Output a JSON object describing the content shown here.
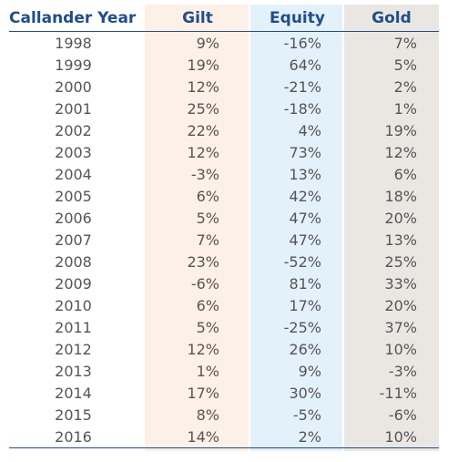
{
  "table": {
    "headers": [
      "Callander Year",
      "Gilt",
      "Equity",
      "Gold"
    ],
    "rows": [
      {
        "year": "1998",
        "gilt": "9%",
        "equity": "-16%",
        "gold": "7%"
      },
      {
        "year": "1999",
        "gilt": "19%",
        "equity": "64%",
        "gold": "5%"
      },
      {
        "year": "2000",
        "gilt": "12%",
        "equity": "-21%",
        "gold": "2%"
      },
      {
        "year": "2001",
        "gilt": "25%",
        "equity": "-18%",
        "gold": "1%"
      },
      {
        "year": "2002",
        "gilt": "22%",
        "equity": "4%",
        "gold": "19%"
      },
      {
        "year": "2003",
        "gilt": "12%",
        "equity": "73%",
        "gold": "12%"
      },
      {
        "year": "2004",
        "gilt": "-3%",
        "equity": "13%",
        "gold": "6%"
      },
      {
        "year": "2005",
        "gilt": "6%",
        "equity": "42%",
        "gold": "18%"
      },
      {
        "year": "2006",
        "gilt": "5%",
        "equity": "47%",
        "gold": "20%"
      },
      {
        "year": "2007",
        "gilt": "7%",
        "equity": "47%",
        "gold": "13%"
      },
      {
        "year": "2008",
        "gilt": "23%",
        "equity": "-52%",
        "gold": "25%"
      },
      {
        "year": "2009",
        "gilt": "-6%",
        "equity": "81%",
        "gold": "33%"
      },
      {
        "year": "2010",
        "gilt": "6%",
        "equity": "17%",
        "gold": "20%"
      },
      {
        "year": "2011",
        "gilt": "5%",
        "equity": "-25%",
        "gold": "37%"
      },
      {
        "year": "2012",
        "gilt": "12%",
        "equity": "26%",
        "gold": "10%"
      },
      {
        "year": "2013",
        "gilt": "1%",
        "equity": "9%",
        "gold": "-3%"
      },
      {
        "year": "2014",
        "gilt": "17%",
        "equity": "30%",
        "gold": "-11%"
      },
      {
        "year": "2015",
        "gilt": "8%",
        "equity": "-5%",
        "gold": "-6%"
      },
      {
        "year": "2016",
        "gilt": "14%",
        "equity": "2%",
        "gold": "10%"
      }
    ]
  },
  "colors": {
    "header_text": "#1f4e8c",
    "body_text": "#555555",
    "gilt_column_bg": "#fdf0e6",
    "equity_column_bg": "#e3f1fb",
    "gold_column_bg": "#eae7e3"
  }
}
